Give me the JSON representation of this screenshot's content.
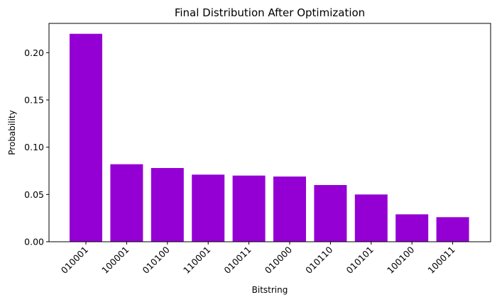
{
  "chart_data": {
    "type": "bar",
    "title": "Final Distribution After Optimization",
    "xlabel": "Bitstring",
    "ylabel": "Probability",
    "categories": [
      "010001",
      "100001",
      "010100",
      "110001",
      "010011",
      "010000",
      "010110",
      "010101",
      "100100",
      "100011"
    ],
    "values": [
      0.22,
      0.082,
      0.078,
      0.071,
      0.07,
      0.069,
      0.06,
      0.05,
      0.029,
      0.026
    ],
    "yticks": [
      "0.00",
      "0.05",
      "0.10",
      "0.15",
      "0.20"
    ],
    "ylim": [
      0,
      0.231
    ],
    "bar_color": "#9400D3",
    "grid": false,
    "xtick_rotation": "45-degrees"
  }
}
